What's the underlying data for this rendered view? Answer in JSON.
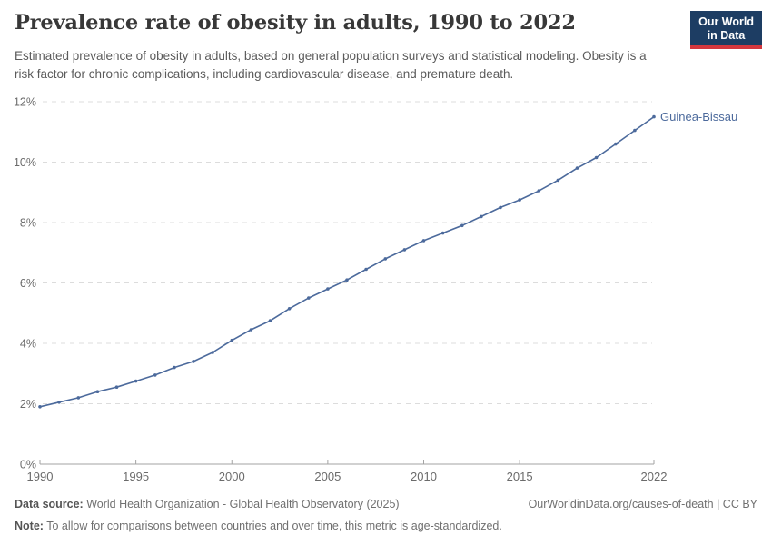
{
  "header": {
    "title": "Prevalence rate of obesity in adults, 1990 to 2022",
    "subtitle": "Estimated prevalence of obesity in adults, based on general population surveys and statistical modeling. Obesity is a risk factor for chronic complications, including cardiovascular disease, and premature death.",
    "logo": {
      "line1": "Our World",
      "line2": "in Data",
      "bg_color": "#1d3d63",
      "accent_color": "#d4373e"
    }
  },
  "chart_data": {
    "type": "line",
    "title": "Prevalence rate of obesity in adults, 1990 to 2022",
    "xlabel": "",
    "ylabel": "",
    "unit": "%",
    "xlim": [
      1990,
      2022
    ],
    "ylim": [
      0,
      12
    ],
    "grid": "horizontal-dashed",
    "legend_position": "end-of-line-label",
    "x_ticks": [
      {
        "value": 1990,
        "label": "1990"
      },
      {
        "value": 1995,
        "label": "1995"
      },
      {
        "value": 2000,
        "label": "2000"
      },
      {
        "value": 2005,
        "label": "2005"
      },
      {
        "value": 2010,
        "label": "2010"
      },
      {
        "value": 2015,
        "label": "2015"
      },
      {
        "value": 2022,
        "label": "2022"
      }
    ],
    "y_ticks": [
      {
        "value": 0,
        "label": "0%"
      },
      {
        "value": 2,
        "label": "2%"
      },
      {
        "value": 4,
        "label": "4%"
      },
      {
        "value": 6,
        "label": "6%"
      },
      {
        "value": 8,
        "label": "8%"
      },
      {
        "value": 10,
        "label": "10%"
      },
      {
        "value": 12,
        "label": "12%"
      }
    ],
    "series": [
      {
        "name": "Guinea-Bissau",
        "color": "#4c6a9c",
        "x": [
          1990,
          1991,
          1992,
          1993,
          1994,
          1995,
          1996,
          1997,
          1998,
          1999,
          2000,
          2001,
          2002,
          2003,
          2004,
          2005,
          2006,
          2007,
          2008,
          2009,
          2010,
          2011,
          2012,
          2013,
          2014,
          2015,
          2016,
          2017,
          2018,
          2019,
          2020,
          2021,
          2022
        ],
        "values": [
          1.9,
          2.05,
          2.2,
          2.4,
          2.55,
          2.75,
          2.95,
          3.2,
          3.4,
          3.7,
          4.1,
          4.45,
          4.75,
          5.15,
          5.5,
          5.8,
          6.1,
          6.45,
          6.8,
          7.1,
          7.4,
          7.65,
          7.9,
          8.2,
          8.5,
          8.75,
          9.05,
          9.4,
          9.8,
          10.15,
          10.6,
          11.05,
          11.5
        ]
      }
    ]
  },
  "footer": {
    "data_source_label": "Data source:",
    "data_source": " World Health Organization - Global Health Observatory (2025)",
    "link": "OurWorldinData.org/causes-of-death | CC BY",
    "note_label": "Note:",
    "note": " To allow for comparisons between countries and over time, this metric is age-standardized."
  }
}
